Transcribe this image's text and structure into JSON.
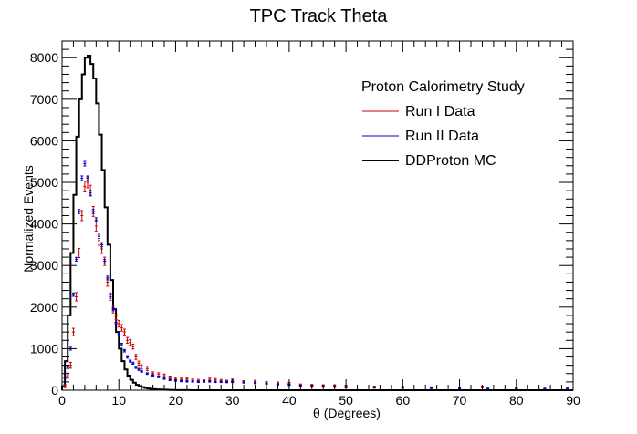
{
  "chart_data": {
    "type": "line",
    "title": "TPC Track Theta",
    "xlabel": "θ (Degrees)",
    "ylabel": "Normalized Events",
    "xlim": [
      0,
      90
    ],
    "ylim": [
      0,
      8400
    ],
    "xticks": [
      0,
      10,
      20,
      30,
      40,
      50,
      60,
      70,
      80,
      90
    ],
    "yticks": [
      0,
      1000,
      2000,
      3000,
      4000,
      5000,
      6000,
      7000,
      8000
    ],
    "grid": false,
    "legend": {
      "placement": "top-right",
      "header": "Proton Calorimetry Study",
      "entries": [
        "Run I Data",
        "Run II Data",
        "DDProton MC"
      ]
    },
    "colors": {
      "run1": "#cc0000",
      "run2": "#0000cc",
      "mc": "#000000"
    },
    "series": [
      {
        "name": "DDProton MC",
        "style": "step",
        "bin_width": 0.5,
        "x": [
          0,
          0.5,
          1,
          1.5,
          2,
          2.5,
          3,
          3.5,
          4,
          4.5,
          5,
          5.5,
          6,
          6.5,
          7,
          7.5,
          8,
          8.5,
          9,
          9.5,
          10,
          10.5,
          11,
          11.5,
          12,
          12.5,
          13,
          13.5,
          14,
          14.5,
          15,
          15.5,
          16,
          16.5,
          17,
          17.5,
          18,
          18.5,
          19,
          19.5,
          20,
          21,
          22,
          23,
          24,
          25,
          30,
          40,
          50,
          60,
          70,
          80,
          90
        ],
        "values": [
          100,
          700,
          1800,
          3300,
          4700,
          6100,
          7000,
          7600,
          8000,
          8050,
          7850,
          7500,
          6900,
          6150,
          5300,
          4400,
          3500,
          2650,
          1950,
          1400,
          1000,
          700,
          500,
          350,
          250,
          180,
          130,
          100,
          75,
          55,
          42,
          32,
          25,
          20,
          16,
          13,
          10,
          8,
          6,
          5,
          4,
          3,
          2,
          1,
          0,
          0,
          0,
          0,
          0,
          0,
          0,
          0,
          0
        ]
      },
      {
        "name": "Run I Data",
        "style": "points",
        "x": [
          0.5,
          1,
          1.5,
          2,
          2.5,
          3,
          3.5,
          4,
          4.5,
          5,
          5.5,
          6,
          6.5,
          7,
          7.5,
          8,
          8.5,
          9,
          9.5,
          10,
          10.5,
          11,
          11.5,
          12,
          12.5,
          13,
          13.5,
          14,
          15,
          16,
          17,
          18,
          19,
          20,
          21,
          22,
          23,
          24,
          25,
          26,
          27,
          28,
          29,
          30,
          32,
          34,
          36,
          38,
          40,
          42,
          44,
          46,
          48,
          50,
          55,
          60,
          65,
          70,
          74,
          80,
          85,
          89
        ],
        "values": [
          100,
          350,
          600,
          1400,
          2250,
          3300,
          4200,
          4900,
          5000,
          4800,
          4300,
          3950,
          3600,
          3400,
          3100,
          2600,
          2250,
          1950,
          1700,
          1600,
          1500,
          1400,
          1200,
          1150,
          1050,
          800,
          650,
          560,
          520,
          400,
          380,
          350,
          300,
          280,
          260,
          270,
          240,
          230,
          220,
          260,
          250,
          230,
          210,
          240,
          200,
          210,
          180,
          170,
          160,
          130,
          120,
          110,
          110,
          100,
          80,
          70,
          60,
          50,
          80,
          40,
          30,
          40
        ],
        "error": [
          40,
          60,
          70,
          90,
          100,
          110,
          120,
          130,
          130,
          130,
          120,
          120,
          110,
          110,
          100,
          100,
          90,
          90,
          80,
          80,
          80,
          70,
          70,
          70,
          60,
          60,
          50,
          50,
          50,
          40,
          40,
          40,
          40,
          30,
          30,
          30,
          30,
          30,
          30,
          30,
          30,
          30,
          30,
          30,
          30,
          30,
          30,
          30,
          30,
          20,
          20,
          20,
          20,
          20,
          20,
          20,
          20,
          20,
          20,
          20,
          20,
          20
        ]
      },
      {
        "name": "Run II Data",
        "style": "points",
        "x": [
          0.5,
          1,
          1.5,
          2,
          2.5,
          3,
          3.5,
          4,
          4.5,
          5,
          5.5,
          6,
          6.5,
          7,
          7.5,
          8,
          8.5,
          9,
          9.5,
          10,
          10.5,
          11,
          11.5,
          12,
          12.5,
          13,
          13.5,
          14,
          15,
          16,
          17,
          18,
          19,
          20,
          21,
          22,
          23,
          24,
          25,
          26,
          27,
          28,
          29,
          30,
          32,
          34,
          36,
          38,
          40,
          42,
          44,
          46,
          48,
          50,
          55,
          60,
          65,
          70,
          75,
          80,
          85,
          89
        ],
        "values": [
          300,
          550,
          1000,
          2300,
          3150,
          4300,
          5100,
          5450,
          5100,
          4750,
          4300,
          4100,
          3700,
          3500,
          3100,
          2700,
          2250,
          1950,
          1600,
          1350,
          1100,
          950,
          800,
          700,
          650,
          550,
          500,
          450,
          400,
          350,
          320,
          280,
          250,
          230,
          220,
          210,
          210,
          200,
          220,
          210,
          200,
          200,
          200,
          200,
          190,
          170,
          160,
          140,
          130,
          110,
          100,
          90,
          80,
          70,
          60,
          60,
          50,
          40,
          40,
          30,
          30,
          30
        ],
        "error": [
          25,
          30,
          35,
          40,
          45,
          50,
          55,
          55,
          55,
          55,
          50,
          50,
          50,
          50,
          45,
          45,
          40,
          40,
          35,
          35,
          30,
          30,
          30,
          25,
          25,
          25,
          25,
          20,
          20,
          20,
          20,
          20,
          20,
          15,
          15,
          15,
          15,
          15,
          15,
          15,
          15,
          15,
          15,
          15,
          15,
          15,
          15,
          15,
          15,
          10,
          10,
          10,
          10,
          10,
          10,
          10,
          10,
          10,
          10,
          10,
          10,
          10
        ]
      }
    ]
  }
}
